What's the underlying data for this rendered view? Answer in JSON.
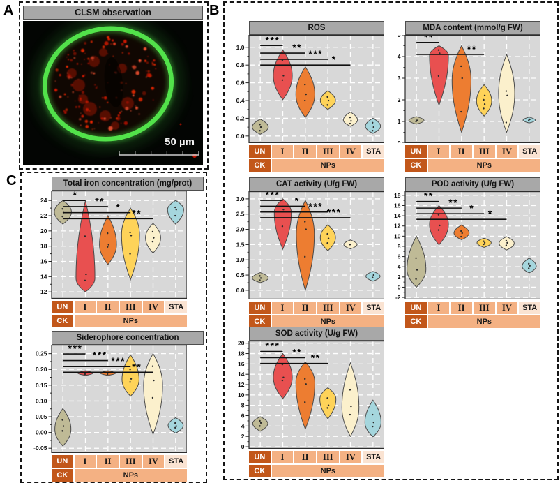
{
  "panels": {
    "a": {
      "label": "A",
      "header": "CLSM observation",
      "scale_text": "50 µm"
    },
    "b": {
      "label": "B"
    },
    "c": {
      "label": "C"
    }
  },
  "categories": {
    "row1": [
      "UN",
      "I",
      "II",
      "III",
      "IV",
      "STA"
    ],
    "row1_cell_styles": [
      "dark",
      "mid",
      "mid",
      "mid",
      "mid",
      "light"
    ],
    "row2": [
      {
        "label": "CK",
        "style": "dark"
      },
      {
        "label": "NPs",
        "style": "mid"
      }
    ]
  },
  "colors": {
    "cell_dark": "#c2571a",
    "cell_mid": "#f4b183",
    "cell_light": "#fae3d2",
    "plot_bg": "#d8d8d8",
    "grid": "#ffffff",
    "violin_stroke": "#4a4a4a",
    "ring_green": "#52e24a",
    "speckle_red": "#ee1b00",
    "violins": {
      "un": "#bfba96",
      "i": "#e85050",
      "ii": "#ed7d31",
      "iii": "#fed359",
      "iv": "#fbf0cc",
      "sta": "#a5d6dd"
    }
  },
  "chart_data": [
    {
      "type": "violin",
      "id": "ros",
      "title": "ROS",
      "ylim": [
        -0.08,
        1.14
      ],
      "yticks": [
        0,
        0.2,
        0.4,
        0.6,
        0.8,
        1.0
      ],
      "ytick_labels": [
        "0.0",
        "0.2",
        "0.4",
        "0.6",
        "0.8",
        "1.0"
      ],
      "violins": [
        {
          "cat": "UN",
          "c": "un",
          "min": 0.02,
          "mode": 0.1,
          "max": 0.19,
          "w": 0.85,
          "dots": [
            0.06,
            0.1,
            0.13
          ]
        },
        {
          "cat": "I",
          "c": "i",
          "min": 0.41,
          "mode": 0.68,
          "max": 0.97,
          "w": 1.0,
          "dots": [
            0.63,
            0.68,
            0.85
          ]
        },
        {
          "cat": "II",
          "c": "ii",
          "min": 0.21,
          "mode": 0.47,
          "max": 0.78,
          "w": 1.0,
          "dots": [
            0.4,
            0.47,
            0.58
          ]
        },
        {
          "cat": "III",
          "c": "iii",
          "min": 0.3,
          "mode": 0.4,
          "max": 0.51,
          "w": 0.8,
          "dots": [
            0.35,
            0.4,
            0.44
          ]
        },
        {
          "cat": "IV",
          "c": "iv",
          "min": 0.11,
          "mode": 0.18,
          "max": 0.27,
          "w": 0.75,
          "dots": [
            0.14,
            0.17,
            0.21
          ]
        },
        {
          "cat": "STA",
          "c": "sta",
          "min": 0.03,
          "mode": 0.11,
          "max": 0.2,
          "w": 0.8,
          "dots": [
            0.06,
            0.1,
            0.15
          ]
        }
      ],
      "sig": [
        {
          "to": 1,
          "label": "***",
          "y": 1.02
        },
        {
          "to": 2,
          "label": "**",
          "y": 0.935
        },
        {
          "to": 3,
          "label": "***",
          "y": 0.865
        },
        {
          "to": 4,
          "label": "*",
          "y": 0.8
        }
      ]
    },
    {
      "type": "violin",
      "id": "mda",
      "title": "MDA content (mmol/g FW)",
      "ylim": [
        0,
        5
      ],
      "yticks": [
        0,
        1,
        2,
        3,
        4,
        5
      ],
      "ytick_labels": [
        "0",
        "1",
        "2",
        "3",
        "4",
        "5"
      ],
      "violins": [
        {
          "cat": "UN",
          "c": "un",
          "min": 0.88,
          "mode": 1.05,
          "max": 1.22,
          "w": 0.8,
          "dots": [
            1.0,
            1.05
          ]
        },
        {
          "cat": "I",
          "c": "i",
          "min": 1.75,
          "mode": 4.05,
          "max": 4.5,
          "w": 1.0,
          "dots": [
            3.1,
            4.15,
            4.3
          ]
        },
        {
          "cat": "II",
          "c": "ii",
          "min": 0.5,
          "mode": 2.9,
          "max": 4.5,
          "w": 1.0,
          "dots": [
            1.45,
            3.0,
            3.55
          ]
        },
        {
          "cat": "III",
          "c": "iii",
          "min": 1.25,
          "mode": 1.95,
          "max": 2.7,
          "w": 0.8,
          "dots": [
            1.6,
            1.8,
            2.0,
            2.2
          ]
        },
        {
          "cat": "IV",
          "c": "iv",
          "min": 0.5,
          "mode": 2.3,
          "max": 4.1,
          "w": 0.85,
          "dots": [
            0.95,
            2.2,
            2.4
          ]
        },
        {
          "cat": "STA",
          "c": "sta",
          "min": 0.93,
          "mode": 1.06,
          "max": 1.2,
          "w": 0.65,
          "dots": [
            1.05,
            1.1
          ]
        }
      ],
      "sig": [
        {
          "to": 1,
          "label": "**",
          "y": 4.65
        },
        {
          "to": 3,
          "label": "**",
          "y": 4.1
        }
      ]
    },
    {
      "type": "violin",
      "id": "cat",
      "title": "CAT activity (U/g FW)",
      "ylim": [
        -0.3,
        3.25
      ],
      "yticks": [
        0,
        0.5,
        1.0,
        1.5,
        2.0,
        2.5,
        3.0
      ],
      "ytick_labels": [
        "0.0",
        "0.5",
        "1.0",
        "1.5",
        "2.0",
        "2.5",
        "3.0"
      ],
      "violins": [
        {
          "cat": "UN",
          "c": "un",
          "min": 0.25,
          "mode": 0.4,
          "max": 0.58,
          "w": 0.85,
          "dots": [
            0.33,
            0.4,
            0.47
          ]
        },
        {
          "cat": "I",
          "c": "i",
          "min": 1.35,
          "mode": 2.55,
          "max": 3.0,
          "w": 0.9,
          "dots": [
            2.1,
            2.65,
            2.75
          ]
        },
        {
          "cat": "II",
          "c": "ii",
          "min": 0.0,
          "mode": 1.85,
          "max": 2.95,
          "w": 0.95,
          "dots": [
            1.1,
            2.0,
            2.25
          ]
        },
        {
          "cat": "III",
          "c": "iii",
          "min": 1.3,
          "mode": 1.73,
          "max": 2.15,
          "w": 0.8,
          "dots": [
            1.55,
            1.7,
            1.85
          ]
        },
        {
          "cat": "IV",
          "c": "iv",
          "min": 1.36,
          "mode": 1.5,
          "max": 1.65,
          "w": 0.7,
          "dots": [
            1.5
          ]
        },
        {
          "cat": "STA",
          "c": "sta",
          "min": 0.3,
          "mode": 0.46,
          "max": 0.62,
          "w": 0.75,
          "dots": [
            0.42,
            0.5
          ]
        }
      ],
      "sig": [
        {
          "to": 1,
          "label": "***",
          "y": 2.95
        },
        {
          "to": 2,
          "label": "*",
          "y": 2.76
        },
        {
          "to": 3,
          "label": "***",
          "y": 2.57
        },
        {
          "to": 4,
          "label": "***",
          "y": 2.38
        }
      ]
    },
    {
      "type": "violin",
      "id": "pod",
      "title": "POD activity (U/g FW)",
      "ylim": [
        -2.4,
        18.8
      ],
      "yticks": [
        -2,
        0,
        2,
        4,
        6,
        8,
        10,
        12,
        14,
        16,
        18
      ],
      "ytick_labels": [
        "-2",
        "0",
        "2",
        "4",
        "6",
        "8",
        "10",
        "12",
        "14",
        "16",
        "18"
      ],
      "violins": [
        {
          "cat": "UN",
          "c": "un",
          "min": 0.0,
          "mode": 3.5,
          "max": 10.0,
          "w": 1.0,
          "dots": [
            1.6,
            3.4,
            5.7
          ]
        },
        {
          "cat": "I",
          "c": "i",
          "min": 8.3,
          "mode": 12.3,
          "max": 16.0,
          "w": 1.0,
          "dots": [
            11.2,
            12.1,
            14.2
          ]
        },
        {
          "cat": "II",
          "c": "ii",
          "min": 9.3,
          "mode": 10.6,
          "max": 12.2,
          "w": 0.8,
          "dots": [
            9.9,
            10.6,
            11.0
          ]
        },
        {
          "cat": "III",
          "c": "iii",
          "min": 7.8,
          "mode": 8.7,
          "max": 9.6,
          "w": 0.75,
          "dots": [
            8.4,
            8.7,
            9.0
          ]
        },
        {
          "cat": "IV",
          "c": "iv",
          "min": 7.3,
          "mode": 8.6,
          "max": 9.9,
          "w": 0.8,
          "dots": [
            8.2,
            8.7,
            9.1
          ]
        },
        {
          "cat": "STA",
          "c": "sta",
          "min": 2.8,
          "mode": 4.1,
          "max": 5.7,
          "w": 0.75,
          "dots": [
            3.7,
            4.2,
            4.6
          ]
        }
      ],
      "sig": [
        {
          "to": 1,
          "label": "**",
          "y": 16.8
        },
        {
          "to": 2,
          "label": "**",
          "y": 15.5
        },
        {
          "to": 3,
          "label": "*",
          "y": 14.4
        },
        {
          "to": 4,
          "label": "*",
          "y": 13.3
        }
      ]
    },
    {
      "type": "violin",
      "id": "sod",
      "title": "SOD activity (U/g FW)",
      "ylim": [
        -0.4,
        20.5
      ],
      "yticks": [
        0,
        2,
        4,
        6,
        8,
        10,
        12,
        14,
        16,
        18,
        20
      ],
      "ytick_labels": [
        "0",
        "2",
        "4",
        "6",
        "8",
        "10",
        "12",
        "14",
        "16",
        "18",
        "20"
      ],
      "violins": [
        {
          "cat": "UN",
          "c": "un",
          "min": 3.0,
          "mode": 4.5,
          "max": 5.8,
          "w": 0.8,
          "dots": [
            4.0,
            4.6,
            5.0
          ]
        },
        {
          "cat": "I",
          "c": "i",
          "min": 9.3,
          "mode": 13.4,
          "max": 18.0,
          "w": 1.0,
          "dots": [
            12.8,
            13.4,
            15.9
          ]
        },
        {
          "cat": "II",
          "c": "ii",
          "min": 3.4,
          "mode": 12.4,
          "max": 16.4,
          "w": 1.0,
          "dots": [
            8.6,
            12.1,
            13.1
          ]
        },
        {
          "cat": "III",
          "c": "iii",
          "min": 5.4,
          "mode": 9.2,
          "max": 11.4,
          "w": 0.85,
          "dots": [
            7.5,
            8.0,
            9.4
          ]
        },
        {
          "cat": "IV",
          "c": "iv",
          "min": 2.0,
          "mode": 7.6,
          "max": 16.2,
          "w": 0.9,
          "dots": [
            6.2,
            7.8,
            11.0
          ]
        },
        {
          "cat": "STA",
          "c": "sta",
          "min": 1.9,
          "mode": 4.7,
          "max": 9.0,
          "w": 0.85,
          "dots": [
            3.9,
            4.7,
            6.2
          ]
        }
      ],
      "sig": [
        {
          "to": 1,
          "label": "***",
          "y": 18.4
        },
        {
          "to": 2,
          "label": "**",
          "y": 17.2
        },
        {
          "to": 3,
          "label": "**",
          "y": 16.1
        }
      ]
    },
    {
      "type": "violin",
      "id": "iron",
      "title": "Total iron concentration (mg/prot)",
      "ylim": [
        11.1,
        25.3
      ],
      "yticks": [
        12,
        14,
        16,
        18,
        20,
        22,
        24
      ],
      "ytick_labels": [
        "12",
        "14",
        "16",
        "18",
        "20",
        "22",
        "24"
      ],
      "violins": [
        {
          "cat": "UN",
          "c": "un",
          "min": 20.9,
          "mode": 22.5,
          "max": 24.0,
          "w": 0.9,
          "dots": [
            21.9,
            22.4,
            22.9
          ]
        },
        {
          "cat": "I",
          "c": "i",
          "min": 12.0,
          "mode": 13.8,
          "max": 24.0,
          "w": 1.0,
          "dots": [
            13.5,
            14.3,
            19.3
          ]
        },
        {
          "cat": "II",
          "c": "ii",
          "min": 15.6,
          "mode": 18.2,
          "max": 22.0,
          "w": 0.9,
          "dots": [
            17.9,
            18.2,
            19.7
          ]
        },
        {
          "cat": "III",
          "c": "iii",
          "min": 13.6,
          "mode": 19.5,
          "max": 23.0,
          "w": 0.95,
          "dots": [
            17.0,
            19.4,
            19.8
          ]
        },
        {
          "cat": "IV",
          "c": "iv",
          "min": 17.1,
          "mode": 19.1,
          "max": 21.0,
          "w": 0.8,
          "dots": [
            18.6,
            19.1,
            19.9
          ]
        },
        {
          "cat": "STA",
          "c": "sta",
          "min": 20.9,
          "mode": 22.8,
          "max": 24.0,
          "w": 0.85,
          "dots": [
            22.0,
            22.8,
            23.1
          ]
        }
      ],
      "sig": [
        {
          "to": 1,
          "label": "*",
          "y": 24.0
        },
        {
          "to": 2,
          "label": "**",
          "y": 23.2
        },
        {
          "to": 3,
          "label": "*",
          "y": 22.4
        },
        {
          "to": 4,
          "label": "**",
          "y": 21.6
        }
      ]
    },
    {
      "type": "violin",
      "id": "siderophore",
      "title": "Siderophore concentration",
      "ylim": [
        -0.065,
        0.278
      ],
      "yticks": [
        -0.05,
        0,
        0.05,
        0.1,
        0.15,
        0.2,
        0.25
      ],
      "ytick_labels": [
        "-0.05",
        "0.00",
        "0.05",
        "0.10",
        "0.15",
        "0.20",
        "0.25"
      ],
      "violins": [
        {
          "cat": "UN",
          "c": "un",
          "min": -0.043,
          "mode": 0.01,
          "max": 0.076,
          "w": 0.85,
          "dots": [
            0.005,
            0.02,
            0.04
          ]
        },
        {
          "cat": "I",
          "c": "i",
          "min": 0.181,
          "mode": 0.188,
          "max": 0.196,
          "w": 0.8,
          "dots": [
            0.185,
            0.19
          ]
        },
        {
          "cat": "II",
          "c": "ii",
          "min": 0.181,
          "mode": 0.188,
          "max": 0.196,
          "w": 0.8,
          "dots": [
            0.185,
            0.19
          ]
        },
        {
          "cat": "III",
          "c": "iii",
          "min": 0.115,
          "mode": 0.168,
          "max": 0.246,
          "w": 0.9,
          "dots": [
            0.16,
            0.17,
            0.2
          ]
        },
        {
          "cat": "IV",
          "c": "iv",
          "min": -0.006,
          "mode": 0.15,
          "max": 0.25,
          "w": 1.0,
          "dots": [
            0.11,
            0.165,
            0.21
          ]
        },
        {
          "cat": "STA",
          "c": "sta",
          "min": -0.002,
          "mode": 0.022,
          "max": 0.047,
          "w": 0.8,
          "dots": [
            0.015,
            0.02,
            0.03
          ]
        }
      ],
      "sig": [
        {
          "to": 1,
          "label": "***",
          "y": 0.249
        },
        {
          "to": 2,
          "label": "***",
          "y": 0.228
        },
        {
          "to": 3,
          "label": "***",
          "y": 0.209
        },
        {
          "to": 4,
          "label": "**",
          "y": 0.191
        }
      ]
    }
  ]
}
